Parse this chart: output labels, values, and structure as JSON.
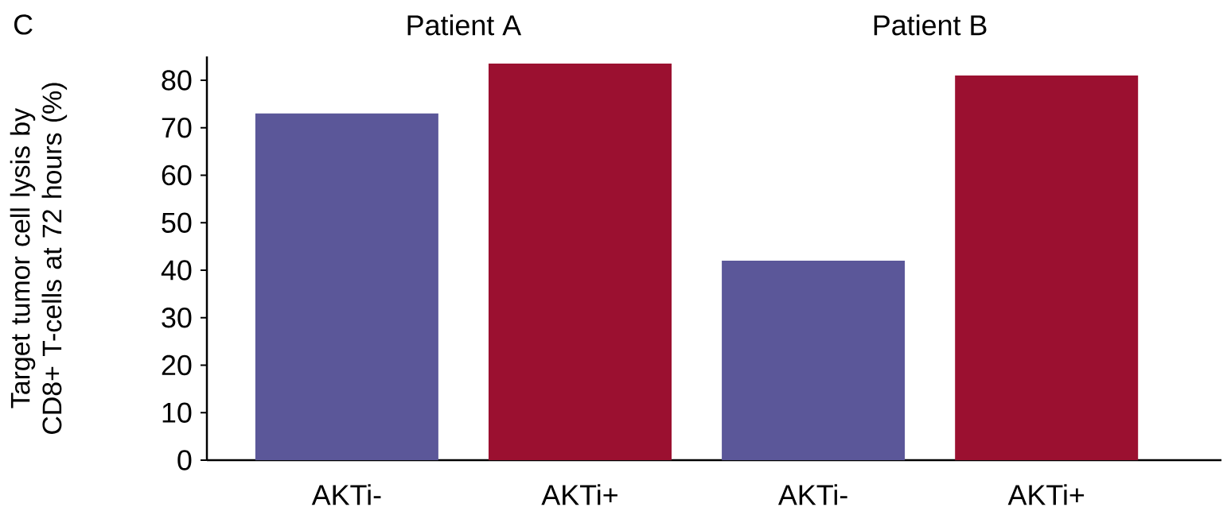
{
  "chart_data": {
    "type": "bar",
    "ylabel": "Target tumor cell lysis by CD8+ T-cells at 72 hours (%)",
    "categories": [
      "AKTi-",
      "AKTi+",
      "AKTi-",
      "AKTi+"
    ],
    "values": [
      73,
      83.5,
      42,
      81
    ],
    "colors": [
      "#5b5799",
      "#9b1030",
      "#5b5799",
      "#9b1030"
    ],
    "ylim": [
      0,
      85
    ],
    "yticks": [
      0,
      10,
      20,
      30,
      40,
      50,
      60,
      70,
      80
    ],
    "annotations": [
      "C",
      "Patient A",
      "Patient B"
    ],
    "grid": false
  }
}
